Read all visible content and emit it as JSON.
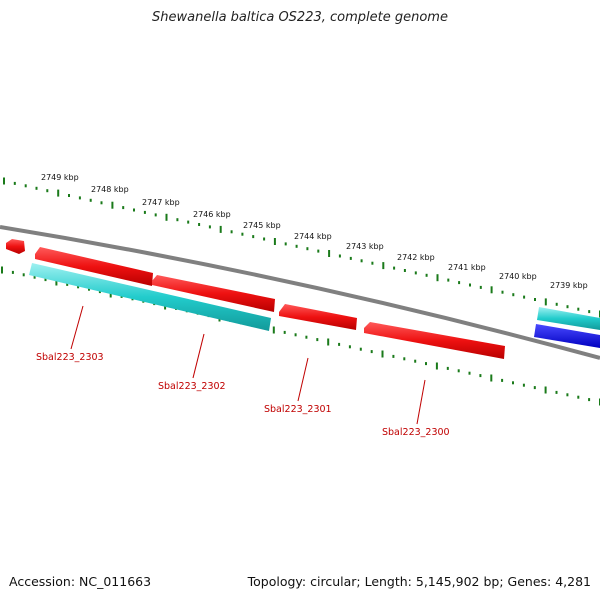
{
  "title": "Shewanella baltica OS223, complete genome",
  "footer": {
    "accession": "Accession: NC_011663",
    "summary": "Topology: circular; Length: 5,145,902 bp; Genes: 4,281"
  },
  "scale_labels": [
    "2749 kbp",
    "2748 kbp",
    "2747 kbp",
    "2746 kbp",
    "2745 kbp",
    "2744 kbp",
    "2743 kbp",
    "2742 kbp",
    "2741 kbp",
    "2740 kbp",
    "2739 kbp"
  ],
  "gene_labels": [
    "Sbal223_2303",
    "Sbal223_2302",
    "Sbal223_2301",
    "Sbal223_2300"
  ],
  "colors": {
    "cds_forward": "#ee1111",
    "cds_reverse_teal": "#22cccc",
    "cds_blue": "#1111dd",
    "backbone": "#808080",
    "ticks": "#1a7a1a",
    "label": "#c00000"
  }
}
